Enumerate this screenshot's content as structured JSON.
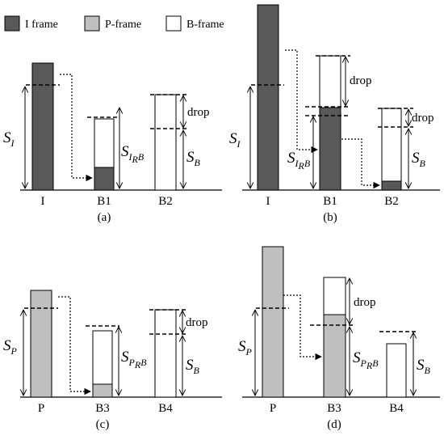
{
  "legend": [
    {
      "key": "i",
      "label": "I frame",
      "color": "#595959"
    },
    {
      "key": "p",
      "label": "P-frame",
      "color": "#bfbfbf"
    },
    {
      "key": "b",
      "label": "B-frame",
      "color": "#ffffff"
    }
  ],
  "panels": [
    {
      "id": "a",
      "caption": "(a)",
      "frames": [
        "I",
        "B1",
        "B2"
      ],
      "drop_label": "drop",
      "symbols": {
        "ref": {
          "main": "S",
          "sub": "I"
        },
        "mid": {
          "main": "S",
          "sub": "I",
          "sub2": "R",
          "tail": "B"
        },
        "last": {
          "main": "S",
          "sub": "B"
        }
      }
    },
    {
      "id": "b",
      "caption": "(b)",
      "frames": [
        "I",
        "B1",
        "B2"
      ],
      "drop_label": "drop",
      "drop_label_2": "drop",
      "symbols": {
        "ref": {
          "main": "S",
          "sub": "I"
        },
        "mid": {
          "main": "S",
          "sub": "I",
          "sub2": "R",
          "tail": "B"
        },
        "last": {
          "main": "S",
          "sub": "B"
        }
      }
    },
    {
      "id": "c",
      "caption": "(c)",
      "frames": [
        "P",
        "B3",
        "B4"
      ],
      "drop_label": "drop",
      "symbols": {
        "ref": {
          "main": "S",
          "sub": "P"
        },
        "mid": {
          "main": "S",
          "sub": "P",
          "sub2": "R",
          "tail": "B"
        },
        "last": {
          "main": "S",
          "sub": "B"
        }
      }
    },
    {
      "id": "d",
      "caption": "(d)",
      "frames": [
        "P",
        "B3",
        "B4"
      ],
      "drop_label": "drop",
      "symbols": {
        "ref": {
          "main": "S",
          "sub": "P"
        },
        "mid": {
          "main": "S",
          "sub": "P",
          "sub2": "R",
          "tail": "B"
        },
        "last": {
          "main": "S",
          "sub": "B"
        }
      }
    }
  ]
}
